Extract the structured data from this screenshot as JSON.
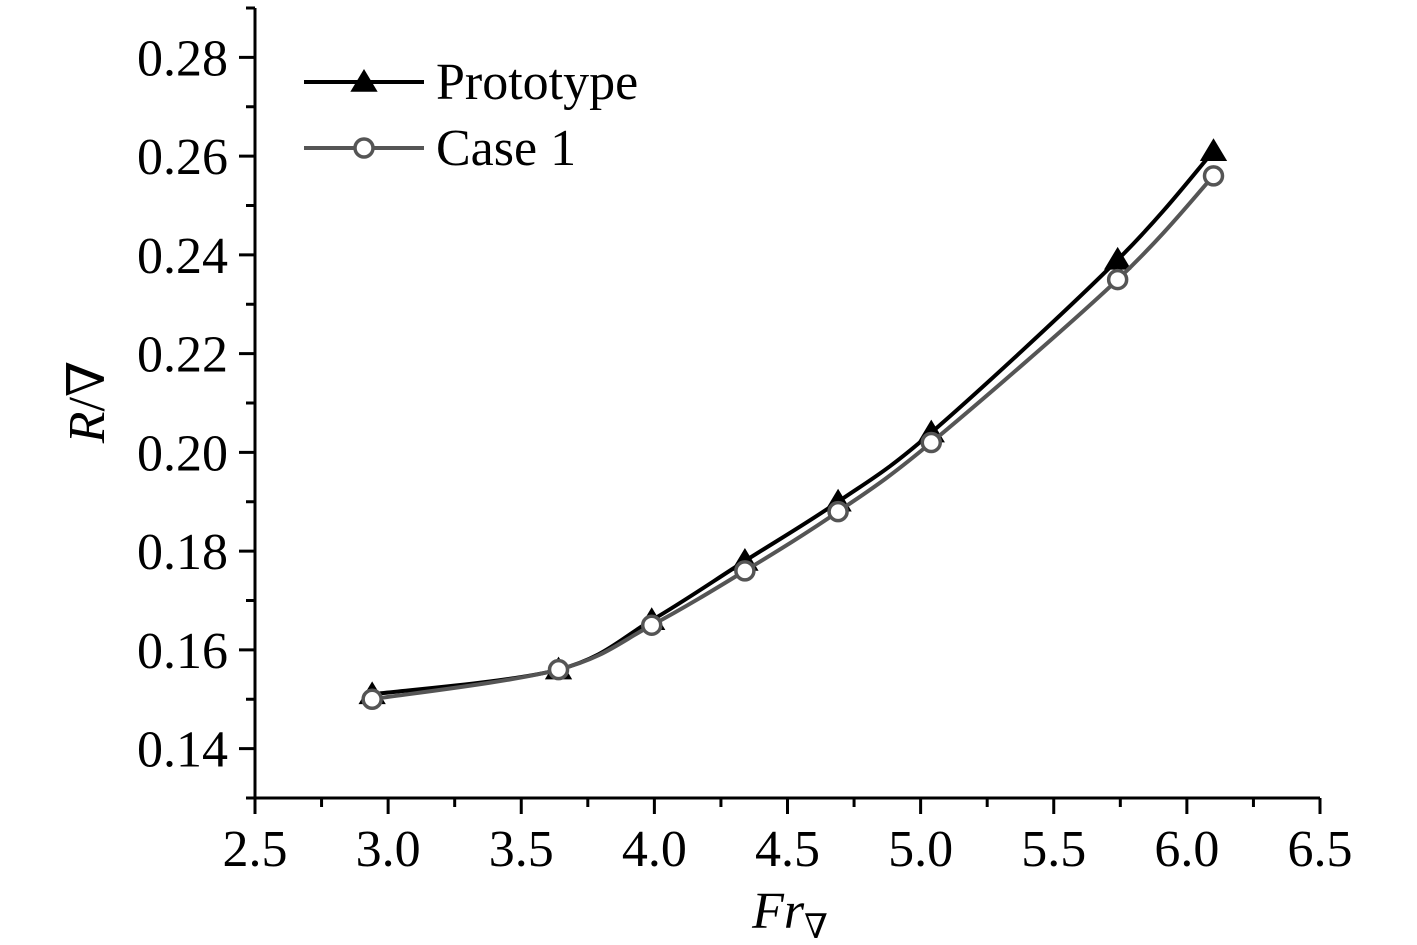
{
  "chart_data": {
    "type": "line",
    "title": "",
    "xlabel": {
      "main": "Fr",
      "subscript": "∇"
    },
    "ylabel": {
      "main": "R",
      "suffix": "/∇"
    },
    "xlim": [
      2.5,
      6.5
    ],
    "ylim": [
      0.13,
      0.29
    ],
    "xticks": [
      "2.5",
      "3.0",
      "3.5",
      "4.0",
      "4.5",
      "5.0",
      "5.5",
      "6.0",
      "6.5"
    ],
    "yticks": [
      "0.14",
      "0.16",
      "0.18",
      "0.20",
      "0.22",
      "0.24",
      "0.26",
      "0.28"
    ],
    "grid": false,
    "legend_position": "top-left",
    "series": [
      {
        "name": "Prototype",
        "marker": "filled-triangle",
        "color": "#000000",
        "x": [
          2.94,
          3.64,
          3.99,
          4.34,
          4.69,
          5.04,
          5.74,
          6.1
        ],
        "y": [
          0.151,
          0.156,
          0.166,
          0.178,
          0.19,
          0.204,
          0.239,
          0.261
        ]
      },
      {
        "name": "Case 1",
        "marker": "open-circle",
        "color": "#555555",
        "x": [
          2.94,
          3.64,
          3.99,
          4.34,
          4.69,
          5.04,
          5.74,
          6.1
        ],
        "y": [
          0.15,
          0.156,
          0.165,
          0.176,
          0.188,
          0.202,
          0.235,
          0.256
        ]
      }
    ]
  }
}
